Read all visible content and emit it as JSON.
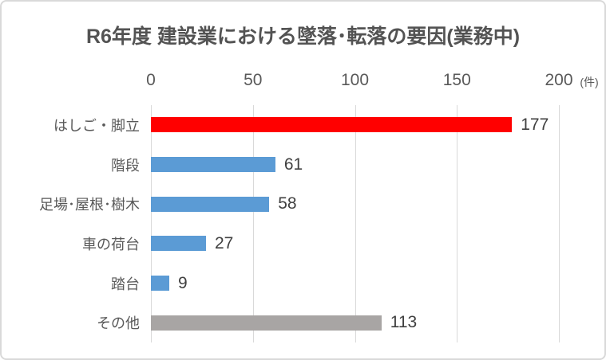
{
  "chart_data": {
    "type": "bar",
    "orientation": "horizontal",
    "title": "R6年度 建設業における墜落･転落の要因(業務中)",
    "categories": [
      "はしご・脚立",
      "階段",
      "足場･屋根･樹木",
      "車の荷台",
      "踏台",
      "その他"
    ],
    "values": [
      177,
      61,
      58,
      27,
      9,
      113
    ],
    "bar_colors": [
      "#FF0000",
      "#5B9BD5",
      "#5B9BD5",
      "#5B9BD5",
      "#5B9BD5",
      "#A8A5A4"
    ],
    "x_ticks": [
      "0",
      "50",
      "100",
      "150",
      "200"
    ],
    "xlim": [
      0,
      200
    ],
    "x_unit": "(件)",
    "grid": true,
    "value_labels": true,
    "legend": false,
    "colors": {
      "highlight": "#FF0000",
      "default_series": "#5B9BD5",
      "other_series": "#A8A5A4",
      "gridline": "#D9D9D9",
      "axis_text": "#595959",
      "value_text": "#404040",
      "title_text": "#535353",
      "border": "#D9D9D9"
    }
  }
}
